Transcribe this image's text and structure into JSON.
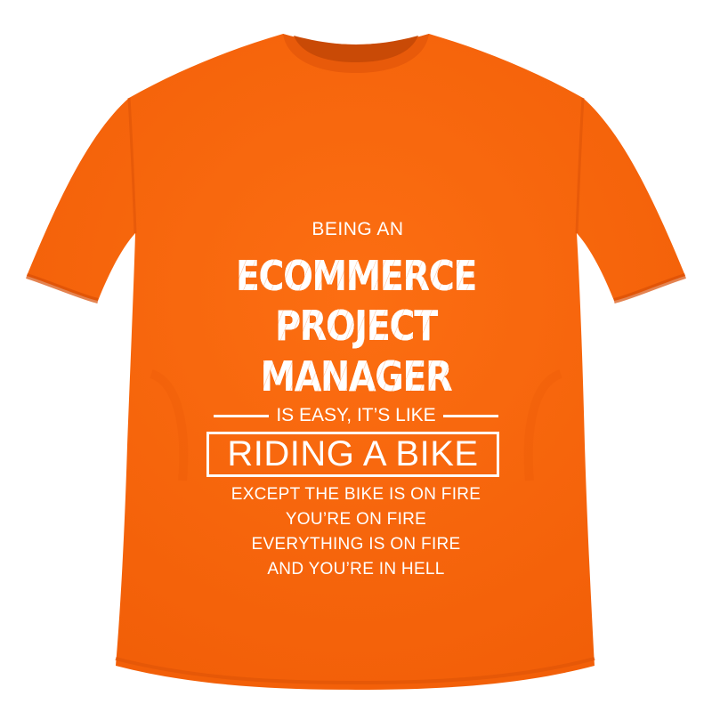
{
  "colors": {
    "shirt": "#fa6a0e",
    "shirt_shadow": "#e25608",
    "print": "#ffffff"
  },
  "print": {
    "intro": "BEING AN",
    "line1": "ECOMMERCE",
    "line2": "PROJECT",
    "line3": "MANAGER",
    "easy": "IS EASY, IT’S LIKE",
    "bike": "RIDING A BIKE",
    "except": "EXCEPT THE BIKE IS ON FIRE",
    "you": "YOU’RE ON FIRE",
    "everything": "EVERYTHING IS ON FIRE",
    "hell": "AND YOU’RE IN HELL"
  }
}
